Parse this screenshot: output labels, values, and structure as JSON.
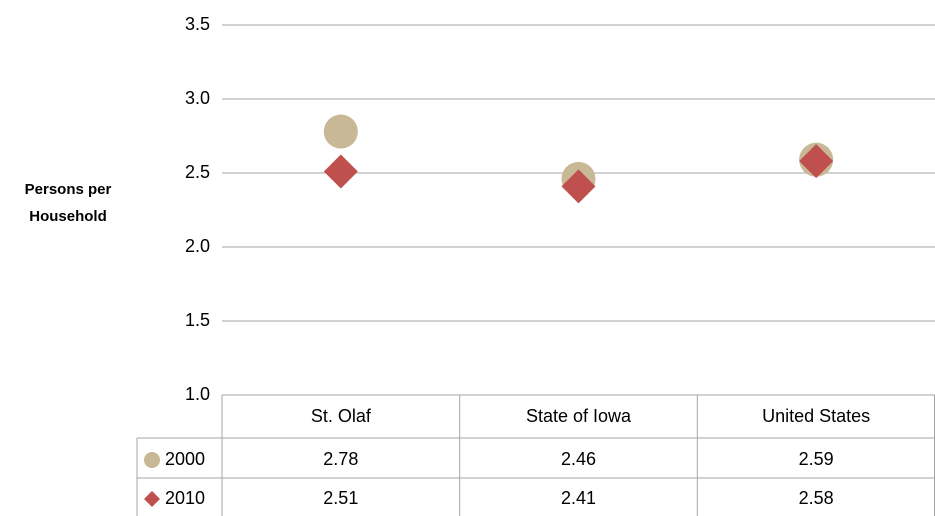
{
  "chart_data": {
    "type": "dot",
    "y_axis_label": "Persons per Household",
    "categories": [
      "St. Olaf",
      "State of Iowa",
      "United States"
    ],
    "series": [
      {
        "name": "2000",
        "color": "#c8b895",
        "marker": "circle",
        "values": [
          2.78,
          2.46,
          2.59
        ]
      },
      {
        "name": "2010",
        "color": "#c0504d",
        "marker": "diamond",
        "values": [
          2.51,
          2.41,
          2.58
        ]
      }
    ],
    "ylim": [
      1.0,
      3.5
    ],
    "yticks": [
      {
        "value": 1.0,
        "label": "1.0"
      },
      {
        "value": 1.5,
        "label": "1.5"
      },
      {
        "value": 2.0,
        "label": "2.0"
      },
      {
        "value": 2.5,
        "label": "2.5"
      },
      {
        "value": 3.0,
        "label": "3.0"
      },
      {
        "value": 3.5,
        "label": "3.5"
      }
    ],
    "grid": true,
    "data_table": true
  }
}
